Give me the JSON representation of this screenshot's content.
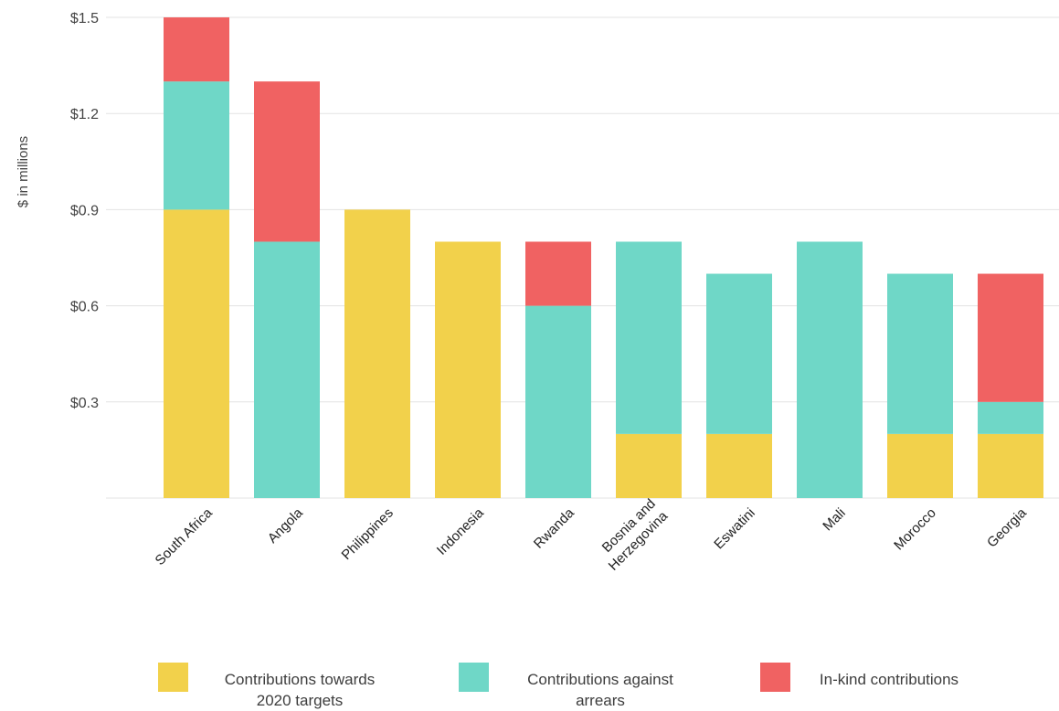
{
  "chart_data": {
    "type": "bar",
    "stacked": true,
    "title": "",
    "xlabel": "",
    "ylabel": "$ in millions",
    "ylim": [
      0,
      1.5
    ],
    "yticks": [
      0.3,
      0.6,
      0.9,
      1.2,
      1.5
    ],
    "ytick_labels": [
      "$0.3",
      "$0.6",
      "$0.9",
      "$1.2",
      "$1.5"
    ],
    "grid": true,
    "legend_position": "bottom",
    "categories": [
      "South Africa",
      "Angola",
      "Philippines",
      "Indonesia",
      "Rwanda",
      "Bosnia and Herzegovina",
      "Eswatini",
      "Mali",
      "Morocco",
      "Georgia"
    ],
    "category_lines": [
      [
        "South Africa"
      ],
      [
        "Angola"
      ],
      [
        "Philippines"
      ],
      [
        "Indonesia"
      ],
      [
        "Rwanda"
      ],
      [
        "Bosnia and",
        "Herzegovina"
      ],
      [
        "Eswatini"
      ],
      [
        "Mali"
      ],
      [
        "Morocco"
      ],
      [
        "Georgia"
      ]
    ],
    "series": [
      {
        "name": "Contributions towards 2020 targets",
        "legend_lines": [
          "Contributions towards",
          "2020 targets"
        ],
        "color": "#f2d14b",
        "values": [
          0.9,
          0,
          0.9,
          0.8,
          0,
          0.2,
          0.2,
          0,
          0.2,
          0.2
        ]
      },
      {
        "name": "Contributions against arrears",
        "legend_lines": [
          "Contributions against",
          "arrears"
        ],
        "color": "#6fd7c7",
        "values": [
          0.4,
          0.8,
          0,
          0,
          0.6,
          0.6,
          0.5,
          0.8,
          0.5,
          0.1
        ]
      },
      {
        "name": "In-kind contributions",
        "legend_lines": [
          "In-kind contributions"
        ],
        "color": "#f06262",
        "values": [
          0.2,
          0.5,
          0,
          0,
          0.2,
          0,
          0,
          0,
          0,
          0.4
        ]
      }
    ]
  }
}
